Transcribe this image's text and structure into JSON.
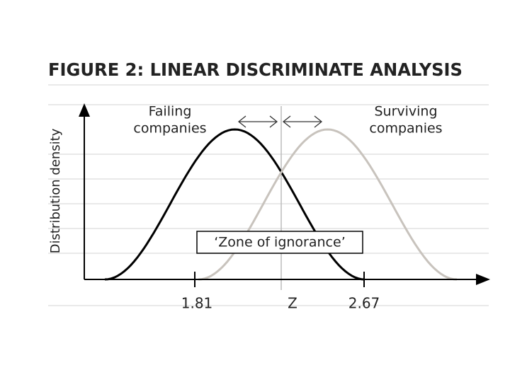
{
  "header": {
    "title": "FIGURE 2: LINEAR DISCRIMINATE ANALYSIS"
  },
  "axis": {
    "y_label": "Distribution density",
    "x_labels": [
      "1.81",
      "Z",
      "2.67"
    ]
  },
  "groups": [
    {
      "label_lines": [
        "Failing",
        "companies"
      ]
    },
    {
      "label_lines": [
        "Surviving",
        "companies"
      ]
    }
  ],
  "zone_label": "‘Zone of ignorance’"
}
